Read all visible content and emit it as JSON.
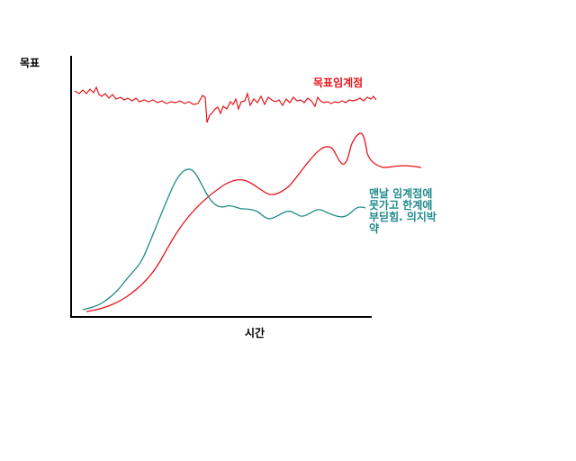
{
  "axes": {
    "y_label": "목표",
    "x_label": "시간"
  },
  "threshold_label": "목표임계점",
  "note_lines": [
    "맨날 임계점에",
    "못가고 한계에",
    "부딛힘. 의지박",
    "약"
  ],
  "colors": {
    "axis": "#000000",
    "threshold": "#e8141c",
    "progress": "#e8141c",
    "willpower": "#1f8a8a",
    "threshold_text": "#e8141c",
    "note_text": "#1f8a8a"
  }
}
